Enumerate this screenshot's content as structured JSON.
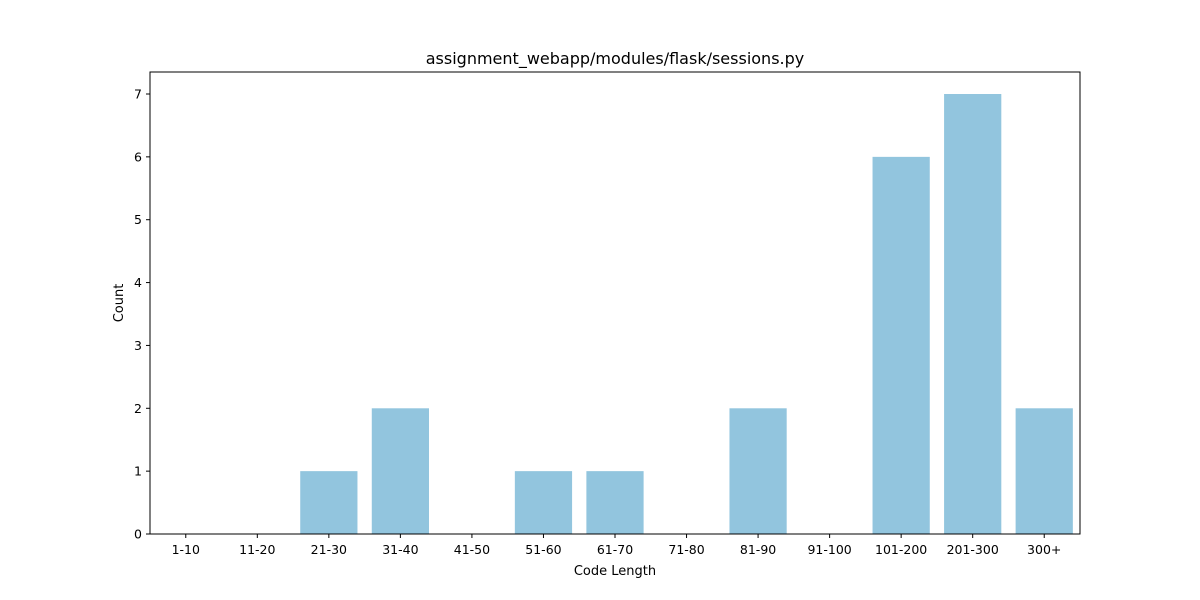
{
  "chart_data": {
    "type": "bar",
    "title": "assignment_webapp/modules/flask/sessions.py",
    "xlabel": "Code Length",
    "ylabel": "Count",
    "categories": [
      "1-10",
      "11-20",
      "21-30",
      "31-40",
      "41-50",
      "51-60",
      "61-70",
      "71-80",
      "81-90",
      "91-100",
      "101-200",
      "201-300",
      "300+"
    ],
    "values": [
      0,
      0,
      1,
      2,
      0,
      1,
      1,
      0,
      2,
      0,
      6,
      7,
      2
    ],
    "ylim": [
      0,
      7.35
    ],
    "yticks": [
      0,
      1,
      2,
      3,
      4,
      5,
      6,
      7
    ],
    "grid": false,
    "legend": "none",
    "bar_color": "#92c5de"
  }
}
